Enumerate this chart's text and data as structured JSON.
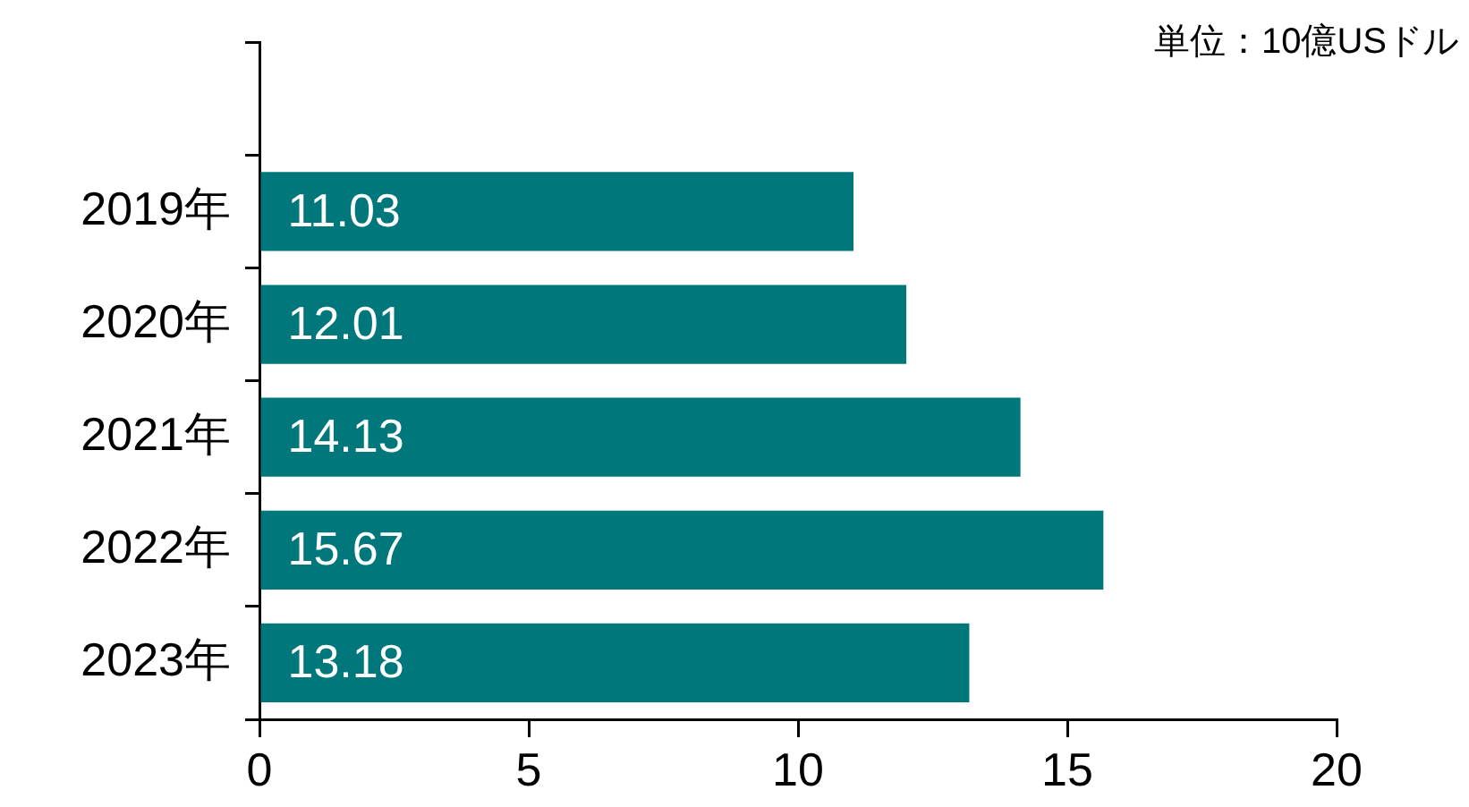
{
  "chart_data": {
    "type": "bar",
    "orientation": "horizontal",
    "categories": [
      null,
      "2019年",
      "2020年",
      "2021年",
      "2022年",
      "2023年"
    ],
    "values": [
      null,
      11.03,
      12.01,
      14.13,
      15.67,
      13.18
    ],
    "color": "#00777a",
    "xlim": [
      0,
      20
    ],
    "xticks": [
      0,
      5,
      10,
      15,
      20
    ],
    "grid": false,
    "legend": false,
    "data_labels": true,
    "annotations": [
      "単位：10億USドル"
    ]
  }
}
